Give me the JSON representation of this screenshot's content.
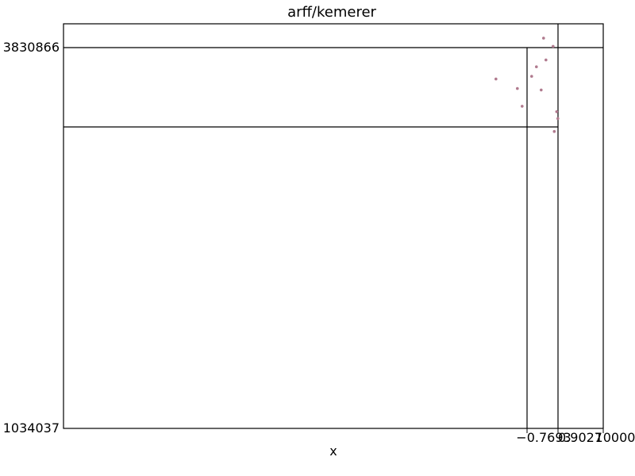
{
  "chart_data": {
    "type": "scatter",
    "title": "arff/kemerer",
    "xlabel": "x",
    "ylabel": "",
    "x_ticks": [
      "−0.7693",
      "0.9027",
      "10000"
    ],
    "y_ticks": [
      "3830866",
      "1034037"
    ],
    "point_color": "#b07a8e",
    "grid": false,
    "points": [
      {
        "x": -0.9,
        "y": 3600000
      },
      {
        "x": -0.81,
        "y": 3530000
      },
      {
        "x": -0.79,
        "y": 3400000
      },
      {
        "x": -0.75,
        "y": 3620000
      },
      {
        "x": -0.73,
        "y": 3690000
      },
      {
        "x": -0.71,
        "y": 3520000
      },
      {
        "x": -0.69,
        "y": 3740000
      },
      {
        "x": -0.7,
        "y": 3900000
      },
      {
        "x": -0.66,
        "y": 3840000
      },
      {
        "x": -0.645,
        "y": 3360000
      },
      {
        "x": -0.655,
        "y": 3215000
      },
      {
        "x": -0.64,
        "y": 3310000
      }
    ]
  }
}
